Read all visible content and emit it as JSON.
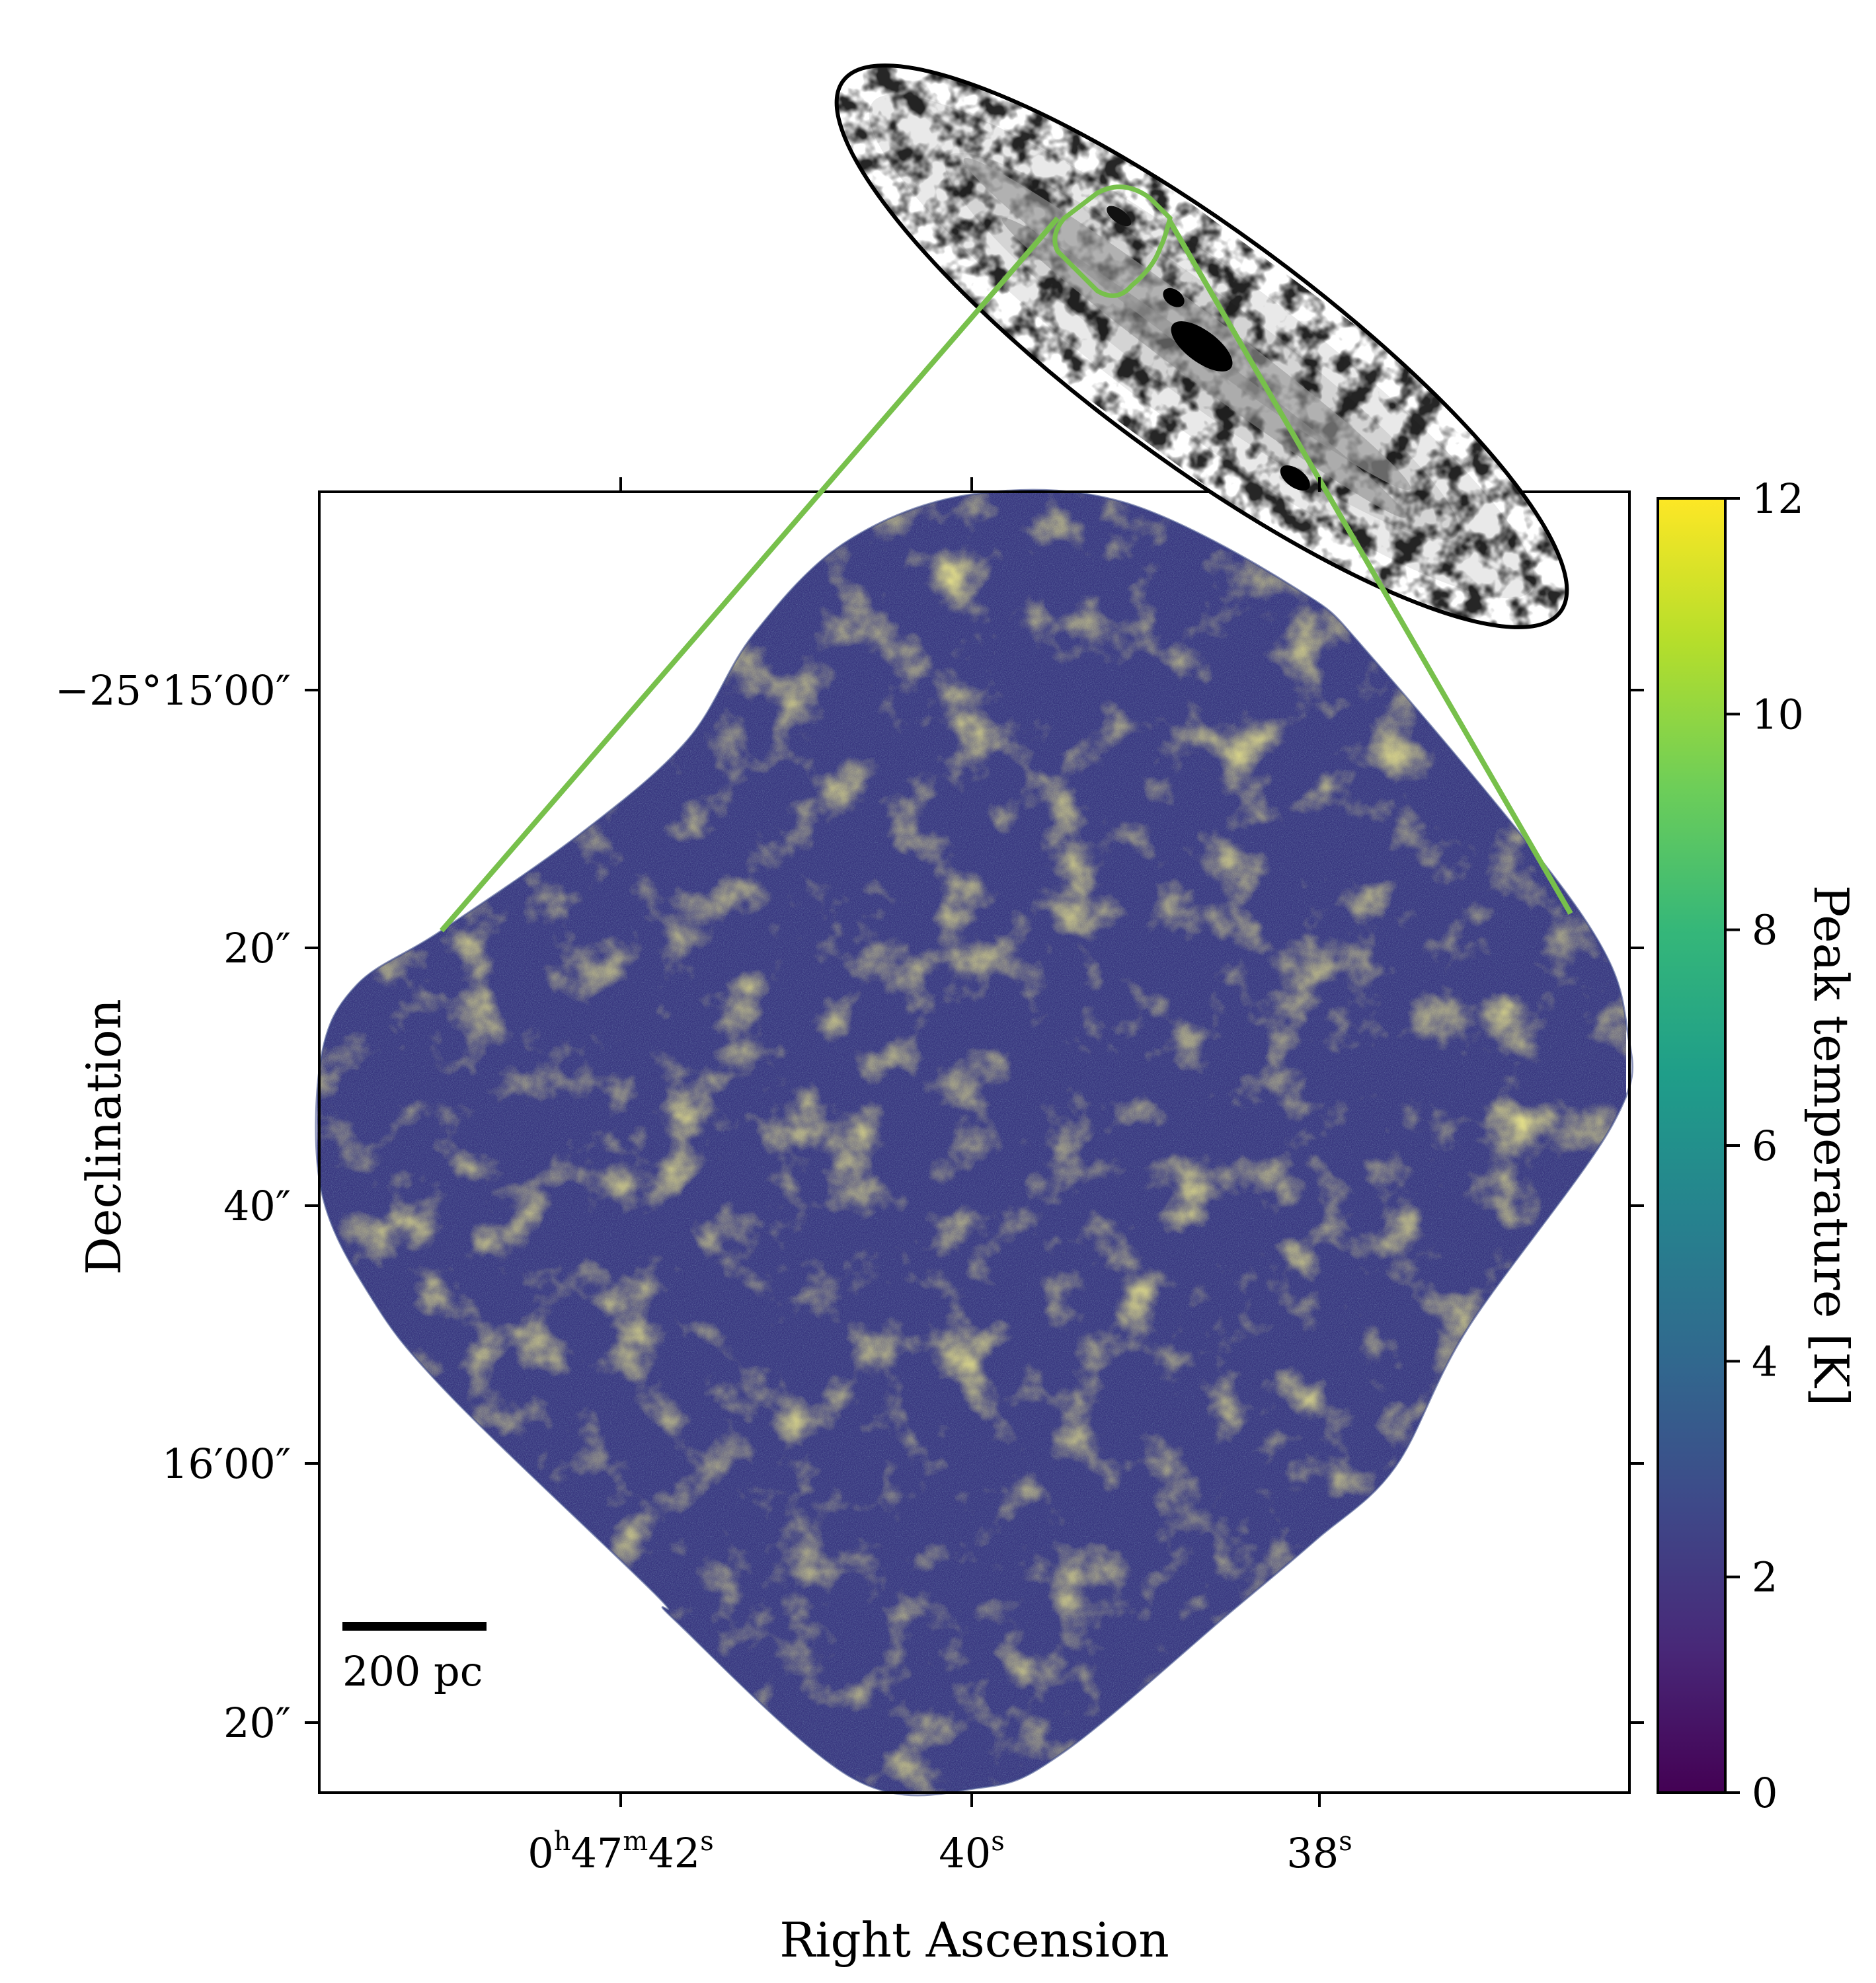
{
  "chart_data": {
    "type": "heatmap",
    "title": "",
    "xlabel": "Right Ascension",
    "ylabel": "Declination",
    "x_ticks": [
      {
        "h": "0",
        "m": "47",
        "s": "42",
        "show_hm": true
      },
      {
        "s": "40",
        "show_hm": false
      },
      {
        "s": "38",
        "show_hm": false
      }
    ],
    "y_ticks": [
      "−25°15′00″",
      "20″",
      "40″",
      "16′00″",
      "20″"
    ],
    "unit_h": "h",
    "unit_m": "m",
    "unit_s": "s",
    "colorbar": {
      "label": "Peak temperature [K]",
      "min": 0,
      "max": 12,
      "ticks": [
        0,
        2,
        4,
        6,
        8,
        10,
        12
      ],
      "colormap": "viridis",
      "colors": [
        "#440154",
        "#482878",
        "#3e4989",
        "#31688e",
        "#26828e",
        "#1f9e89",
        "#35b779",
        "#6ece58",
        "#b5de2b",
        "#fde725"
      ]
    },
    "scale_bar": {
      "label": "200 pc"
    },
    "inset": {
      "description_colormap": "gray_r",
      "outline_color": "#000000"
    },
    "highlight_color": "#77c04b",
    "map_typical_value_K": 1.5
  }
}
